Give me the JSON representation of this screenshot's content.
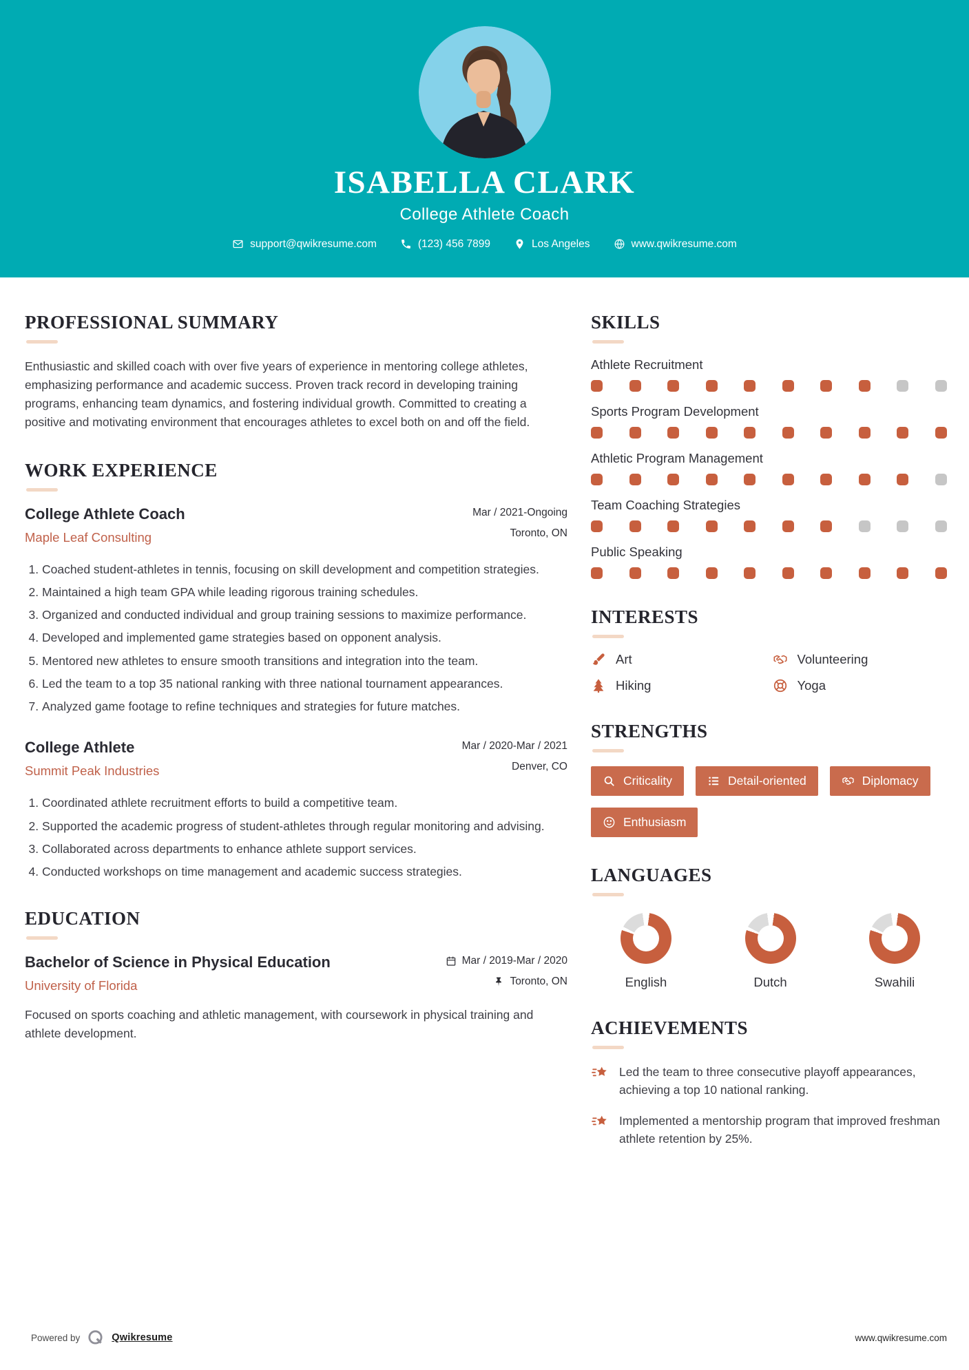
{
  "colors": {
    "teal": "#00abb3",
    "accent_orange": "#c75f3e",
    "badge_orange": "#c96b4d",
    "dot_empty_gray": "#c6c6c6",
    "donut_gray": "#dcdcdc",
    "heading_dark": "#25252d",
    "company_orange": "#c0614a",
    "underline_peach": "#f3d8c5"
  },
  "header": {
    "name": "ISABELLA CLARK",
    "title": "College Athlete Coach",
    "contacts": [
      {
        "icon": "mail-icon",
        "text": "support@qwikresume.com"
      },
      {
        "icon": "phone-icon",
        "text": "(123) 456 7899"
      },
      {
        "icon": "location-pin-icon",
        "text": "Los Angeles"
      },
      {
        "icon": "globe-icon",
        "text": "www.qwikresume.com"
      }
    ]
  },
  "summary": {
    "heading": "PROFESSIONAL SUMMARY",
    "text": "Enthusiastic and skilled coach with over five years of experience in mentoring college athletes, emphasizing performance and academic success. Proven track record in developing training programs, enhancing team dynamics, and fostering individual growth. Committed to creating a positive and motivating environment that encourages athletes to excel both on and off the field."
  },
  "experience": {
    "heading": "WORK EXPERIENCE",
    "jobs": [
      {
        "title": "College Athlete Coach",
        "company": "Maple Leaf Consulting",
        "date": "Mar / 2021-Ongoing",
        "location": "Toronto, ON",
        "bullets": [
          "Coached student-athletes in tennis, focusing on skill development and competition strategies.",
          "Maintained a high team GPA while leading rigorous training schedules.",
          "Organized and conducted individual and group training sessions to maximize performance.",
          "Developed and implemented game strategies based on opponent analysis.",
          "Mentored new athletes to ensure smooth transitions and integration into the team.",
          "Led the team to a top 35 national ranking with three national tournament appearances.",
          "Analyzed game footage to refine techniques and strategies for future matches."
        ]
      },
      {
        "title": "College Athlete",
        "company": "Summit Peak Industries",
        "date": "Mar / 2020-Mar / 2021",
        "location": "Denver, CO",
        "bullets": [
          "Coordinated athlete recruitment efforts to build a competitive team.",
          "Supported the academic progress of student-athletes through regular monitoring and advising.",
          "Collaborated across departments to enhance athlete support services.",
          "Conducted workshops on time management and academic success strategies."
        ]
      }
    ]
  },
  "education": {
    "heading": "EDUCATION",
    "degree": "Bachelor of Science in Physical Education",
    "school": "University of Florida",
    "date": "Mar / 2019-Mar / 2020",
    "location": "Toronto, ON",
    "description": "Focused on sports coaching and athletic management, with coursework in physical training and athlete development."
  },
  "skills": {
    "heading": "SKILLS",
    "items": [
      {
        "label": "Athlete Recruitment",
        "filled": 8,
        "total": 10
      },
      {
        "label": "Sports Program Development",
        "filled": 10,
        "total": 10
      },
      {
        "label": "Athletic Program Management",
        "filled": 9,
        "total": 10
      },
      {
        "label": "Team Coaching Strategies",
        "filled": 7,
        "total": 10
      },
      {
        "label": "Public Speaking",
        "filled": 10,
        "total": 10
      }
    ]
  },
  "interests": {
    "heading": "INTERESTS",
    "items": [
      {
        "icon": "paintbrush-icon",
        "label": "Art"
      },
      {
        "icon": "handshake-icon",
        "label": "Volunteering"
      },
      {
        "icon": "pine-tree-icon",
        "label": "Hiking"
      },
      {
        "icon": "lifebuoy-icon",
        "label": "Yoga"
      }
    ]
  },
  "strengths": {
    "heading": "STRENGTHS",
    "items": [
      {
        "icon": "magnifier-icon",
        "label": "Criticality"
      },
      {
        "icon": "list-icon",
        "label": "Detail-oriented"
      },
      {
        "icon": "handshake-icon",
        "label": "Diplomacy"
      },
      {
        "icon": "smiley-icon",
        "label": "Enthusiasm"
      }
    ]
  },
  "languages": {
    "heading": "LANGUAGES",
    "items": [
      {
        "label": "English",
        "percent": 78
      },
      {
        "label": "Dutch",
        "percent": 78
      },
      {
        "label": "Swahili",
        "percent": 78
      }
    ]
  },
  "achievements": {
    "heading": "ACHIEVEMENTS",
    "items": [
      "Led the team to three consecutive playoff appearances, achieving a top 10 national ranking.",
      "Implemented a mentorship program that improved freshman athlete retention by 25%."
    ]
  },
  "footer": {
    "powered_by": "Powered by",
    "brand": "Qwikresume",
    "website": "www.qwikresume.com"
  }
}
